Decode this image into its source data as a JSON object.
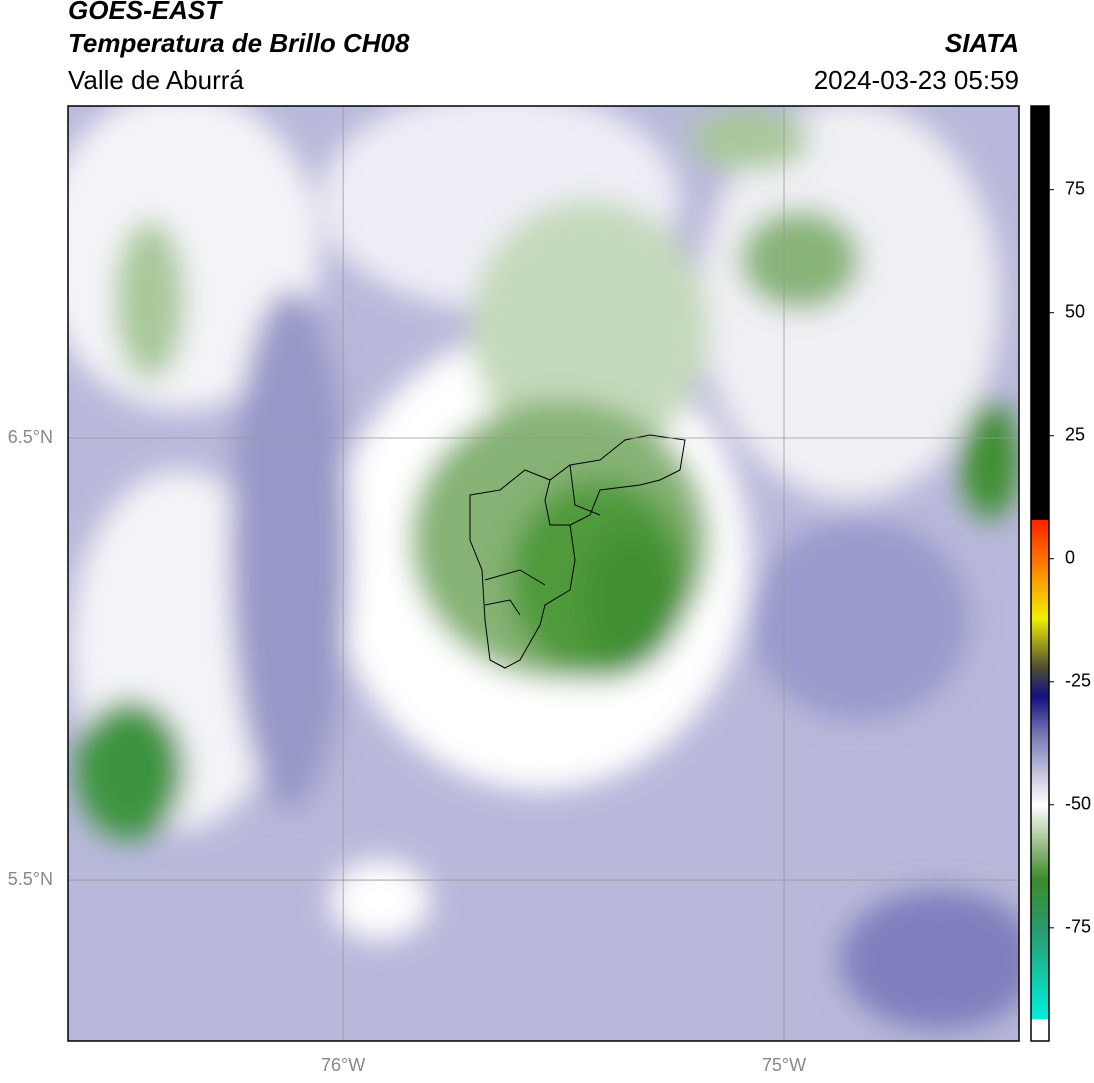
{
  "title": "GOES-EAST",
  "subtitle": "Temperatura de Brillo CH08",
  "region": "Valle de Aburrá",
  "source": "SIATA",
  "datetime": "2024-03-23 05:59",
  "map": {
    "xlim": [
      -76.624,
      -74.467
    ],
    "ylim": [
      5.136,
      7.251
    ],
    "xticks": [
      {
        "value": -76,
        "label": "76°W"
      },
      {
        "value": -75,
        "label": "75°W"
      }
    ],
    "yticks": [
      {
        "value": 5.5,
        "label": "5.5°N"
      },
      {
        "value": 6.5,
        "label": "6.5°N"
      }
    ],
    "grid": true
  },
  "colorbar": {
    "lim": [
      -98,
      92
    ],
    "ticks": [
      -75,
      -50,
      -25,
      0,
      25,
      50,
      75
    ],
    "stops": [
      {
        "value": -98,
        "color": "#ffffff"
      },
      {
        "value": -93.5,
        "color": "#ffffff"
      },
      {
        "value": -93.5,
        "color": "#00f0e0"
      },
      {
        "value": -75,
        "color": "#2a9a6a"
      },
      {
        "value": -65,
        "color": "#3d8b2a"
      },
      {
        "value": -58,
        "color": "#9abf8a"
      },
      {
        "value": -50,
        "color": "#ffffff"
      },
      {
        "value": -44,
        "color": "#c8c8e0"
      },
      {
        "value": -35,
        "color": "#7070b0"
      },
      {
        "value": -28,
        "color": "#101080"
      },
      {
        "value": -22,
        "color": "#505030"
      },
      {
        "value": -12,
        "color": "#f0f000"
      },
      {
        "value": -3,
        "color": "#ff9000"
      },
      {
        "value": 8,
        "color": "#ff2000"
      },
      {
        "value": 8,
        "color": "#000000"
      },
      {
        "value": 92,
        "color": "#000000"
      }
    ]
  }
}
